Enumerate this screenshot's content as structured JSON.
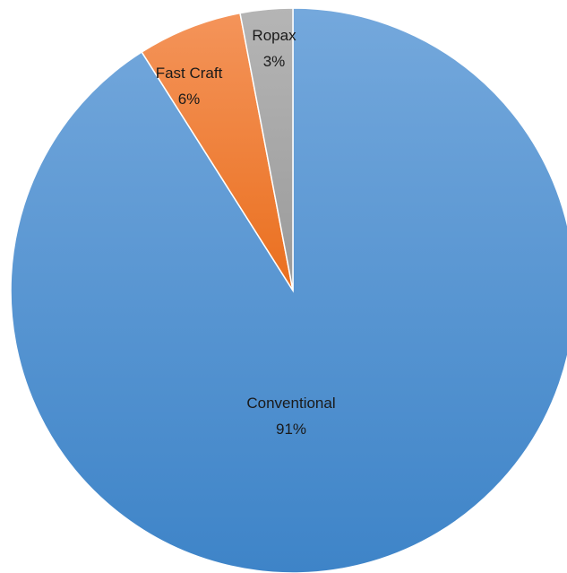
{
  "chart_data": {
    "type": "pie",
    "title": "",
    "slices": [
      {
        "label": "Conventional",
        "value": 91,
        "percent_label": "91%",
        "color_top": "#74a8dc",
        "color_bottom": "#3e84c8"
      },
      {
        "label": "Fast Craft",
        "value": 6,
        "percent_label": "6%",
        "color_top": "#f4945a",
        "color_bottom": "#ea6f1e"
      },
      {
        "label": "Ropax",
        "value": 3,
        "percent_label": "3%",
        "color_top": "#b5b5b5",
        "color_bottom": "#9a9a9a"
      }
    ],
    "start_angle_deg": 0,
    "direction": "clockwise",
    "legend": "none",
    "data_labels": "inside"
  }
}
